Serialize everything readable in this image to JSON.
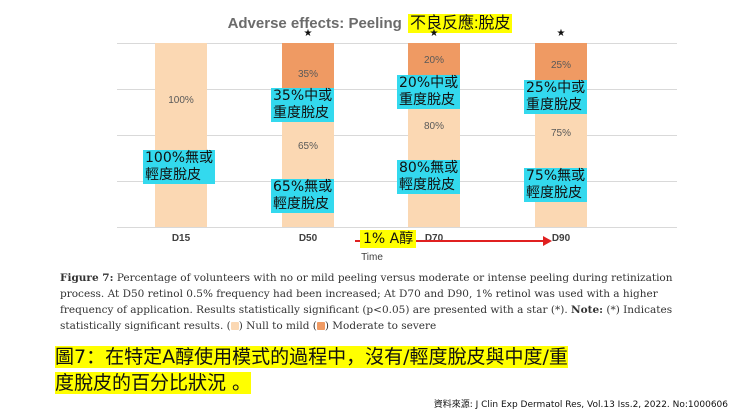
{
  "chart_data": {
    "type": "bar",
    "stacked": true,
    "title": "Adverse effects: Peeling",
    "xlabel": "Time",
    "ylabel": "",
    "ylim": [
      0,
      100
    ],
    "categories": [
      "D15",
      "D50",
      "D70",
      "D90"
    ],
    "series": [
      {
        "name": "Null to mild",
        "color": "#fbd8b3",
        "values": [
          100,
          65,
          80,
          75
        ],
        "labels": [
          "100%",
          "65%",
          "80%",
          "75%"
        ]
      },
      {
        "name": "Moderate to severe",
        "color": "#ef9a63",
        "values": [
          0,
          35,
          20,
          25
        ],
        "labels": [
          "",
          "35%",
          "20%",
          "25%"
        ]
      }
    ],
    "significant": [
      false,
      true,
      true,
      true
    ],
    "star_symbol": "★",
    "grid": true
  },
  "header": {
    "title_zh": "不良反應:脫皮"
  },
  "annotations": {
    "d15_null": [
      "100%無或",
      "輕度脫皮"
    ],
    "d50_mod": [
      "35%中或",
      "重度脫皮"
    ],
    "d50_null": [
      "65%無或",
      "輕度脫皮"
    ],
    "d70_mod": [
      "20%中或",
      "重度脫皮"
    ],
    "d70_null": [
      "80%無或",
      "輕度脫皮"
    ],
    "d90_mod": [
      "25%中或",
      "重度脫皮"
    ],
    "d90_null": [
      "75%無或",
      "輕度脫皮"
    ],
    "arrow_label": "1% A醇"
  },
  "caption": {
    "fig_label": "Figure 7:",
    "text1": " Percentage of volunteers with no or mild peeling versus moderate or intense peeling during retinization process. At D50 retinol 0.5% frequency had been increased; At D70 and D90, 1% retinol was used with a higher frequency of application. Results statistically significant (p<0.05) are presented with a star (*). ",
    "note_label": "Note:",
    "text2": " (*) Indicates statistically significant results. (",
    "legend1": ") Null to mild (",
    "legend2": ") Moderate to severe"
  },
  "summary": {
    "line1": "圖7：在特定A醇使用模式的過程中，沒有/輕度脫皮與中度/重",
    "line2": "度脫皮的百分比狀況 。"
  },
  "source": "資料來源: J Clin Exp Dermatol Res, Vol.13 Iss.2, 2022. No:1000606"
}
